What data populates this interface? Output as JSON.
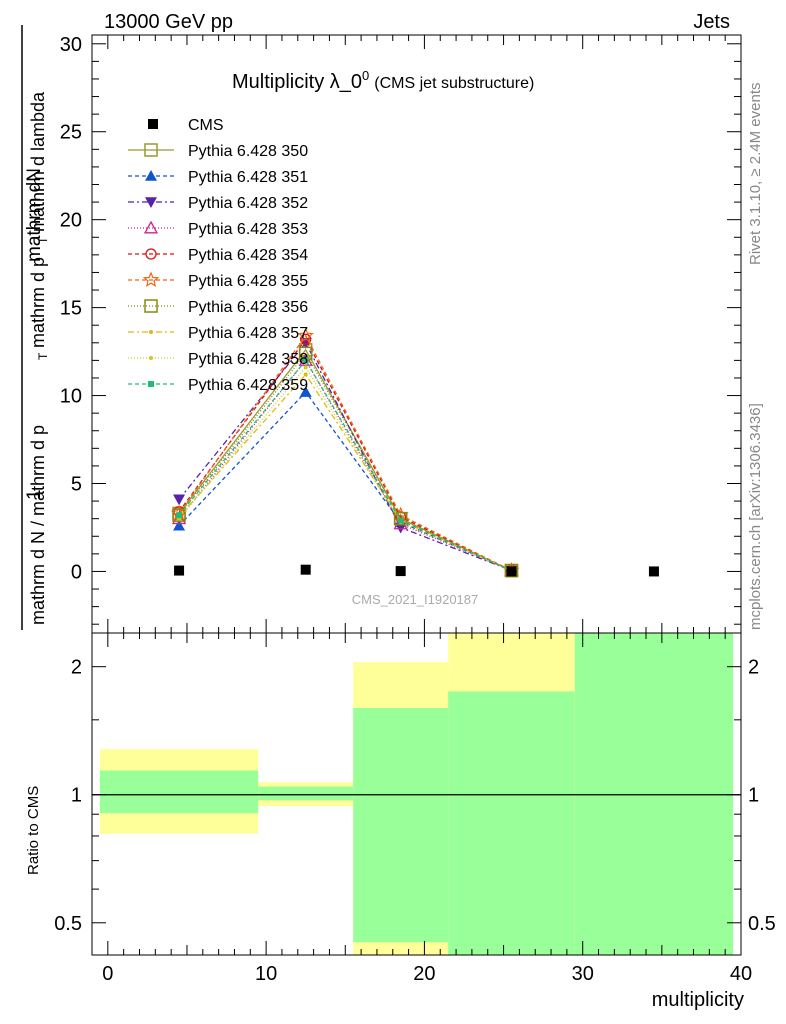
{
  "header": {
    "beam": "13000 GeV pp",
    "process": "Jets"
  },
  "side_labels": {
    "rivet": "Rivet 3.1.10, ≥ 2.4M events",
    "mcplots": "mcplots.cern.ch [arXiv:1306.3436]"
  },
  "colors": {
    "ratio_yellow": "#ffff99",
    "ratio_green": "#99ff99"
  },
  "chart_data": [
    {
      "type": "line",
      "title": "Multiplicity λ_0",
      "title_sup": "0",
      "subtitle": "(CMS jet substructure)",
      "watermark": "CMS_2021_I1920187",
      "ylabel_numerator": "mathrm dN",
      "ylabel_denominator": "mathrm d N / mathrm d p",
      "ylabel_sub_T": "T",
      "ylabel_mid": "mathrm d p",
      "ylabel_tail": "mathrm d lambda",
      "ylabel_one": "1",
      "xlim": [
        -1,
        40
      ],
      "ylim": [
        -3.5,
        30.5
      ],
      "yticks": [
        0,
        5,
        10,
        15,
        20,
        25,
        30
      ],
      "tick_labels": [
        "0",
        "5",
        "10",
        "15",
        "20",
        "25",
        "30"
      ],
      "cms": {
        "name": "CMS",
        "color": "#000000",
        "x": [
          4.5,
          12.5,
          18.5,
          25.5,
          34.5
        ],
        "y": [
          0.05,
          0.1,
          0.02,
          0.0,
          0.0
        ]
      },
      "series": [
        {
          "name": "Pythia 6.428 350",
          "color": "#999933",
          "dash": "",
          "marker": "square-open",
          "x": [
            4.5,
            12.5,
            18.5,
            25.5
          ],
          "y": [
            3.3,
            12.6,
            3.0,
            0.05
          ]
        },
        {
          "name": "Pythia 6.428 351",
          "color": "#1155cc",
          "dash": "4,3",
          "marker": "triangle-up",
          "x": [
            4.5,
            12.5,
            18.5,
            25.5
          ],
          "y": [
            2.6,
            10.2,
            2.8,
            0.05
          ]
        },
        {
          "name": "Pythia 6.428 352",
          "color": "#5522aa",
          "dash": "6,3,2,3",
          "marker": "triangle-down",
          "x": [
            4.5,
            12.5,
            18.5,
            25.5
          ],
          "y": [
            4.1,
            13.0,
            2.5,
            0.05
          ]
        },
        {
          "name": "Pythia 6.428 353",
          "color": "#cc2299",
          "dash": "1,2",
          "marker": "triangle-up-open",
          "x": [
            4.5,
            12.5,
            18.5,
            25.5
          ],
          "y": [
            3.0,
            12.0,
            2.7,
            0.05
          ]
        },
        {
          "name": "Pythia 6.428 354",
          "color": "#dd1111",
          "dash": "4,3",
          "marker": "circle-open",
          "x": [
            4.5,
            12.5,
            18.5,
            25.5
          ],
          "y": [
            3.4,
            13.2,
            3.1,
            0.05
          ]
        },
        {
          "name": "Pythia 6.428 355",
          "color": "#ee6611",
          "dash": "4,3",
          "marker": "star-open",
          "x": [
            4.5,
            12.5,
            18.5,
            25.5
          ],
          "y": [
            3.3,
            13.4,
            3.2,
            0.05
          ]
        },
        {
          "name": "Pythia 6.428 356",
          "color": "#888811",
          "dash": "1,2",
          "marker": "square-open",
          "x": [
            4.5,
            12.5,
            18.5,
            25.5
          ],
          "y": [
            3.2,
            12.4,
            3.0,
            0.05
          ]
        },
        {
          "name": "Pythia 6.428 357",
          "color": "#ddbb11",
          "dash": "6,3,2,3",
          "marker": "dot",
          "x": [
            4.5,
            12.5,
            18.5,
            25.5
          ],
          "y": [
            3.1,
            11.2,
            2.9,
            0.05
          ]
        },
        {
          "name": "Pythia 6.428 358",
          "color": "#cccc22",
          "dash": "1,2",
          "marker": "dot",
          "x": [
            4.5,
            12.5,
            18.5,
            25.5
          ],
          "y": [
            3.0,
            11.6,
            2.8,
            0.05
          ]
        },
        {
          "name": "Pythia 6.428 359",
          "color": "#22bb77",
          "dash": "4,3",
          "marker": "square-small",
          "x": [
            4.5,
            12.5,
            18.5,
            25.5
          ],
          "y": [
            3.2,
            12.0,
            2.9,
            0.05
          ]
        }
      ]
    },
    {
      "type": "area",
      "ylabel": "Ratio to CMS",
      "xlabel": "multiplicity",
      "scale": "log",
      "xlim": [
        -1,
        40
      ],
      "ylim": [
        0.42,
        2.4
      ],
      "yticks": [
        0.5,
        1,
        2
      ],
      "tick_labels": [
        "0.5",
        "1",
        "2"
      ],
      "xticks": [
        0,
        10,
        20,
        30,
        40
      ],
      "xtick_labels": [
        "0",
        "10",
        "20",
        "30",
        "40"
      ],
      "reference": 1,
      "bins": [
        {
          "xlo": -0.5,
          "xhi": 9.5,
          "yellow": [
            0.81,
            1.28
          ],
          "green": [
            0.905,
            1.14
          ]
        },
        {
          "xlo": 9.5,
          "xhi": 15.5,
          "yellow": [
            0.94,
            1.07
          ],
          "green": [
            0.97,
            1.045
          ]
        },
        {
          "xlo": 15.5,
          "xhi": 21.5,
          "yellow": [
            0.42,
            2.05
          ],
          "green": [
            0.45,
            1.6
          ]
        },
        {
          "xlo": 21.5,
          "xhi": 29.5,
          "yellow": [
            0.42,
            2.4
          ],
          "green": [
            0.42,
            1.75
          ]
        },
        {
          "xlo": 29.5,
          "xhi": 39.5,
          "yellow": [
            0.42,
            2.4
          ],
          "green": [
            0.42,
            2.4
          ]
        }
      ]
    }
  ]
}
